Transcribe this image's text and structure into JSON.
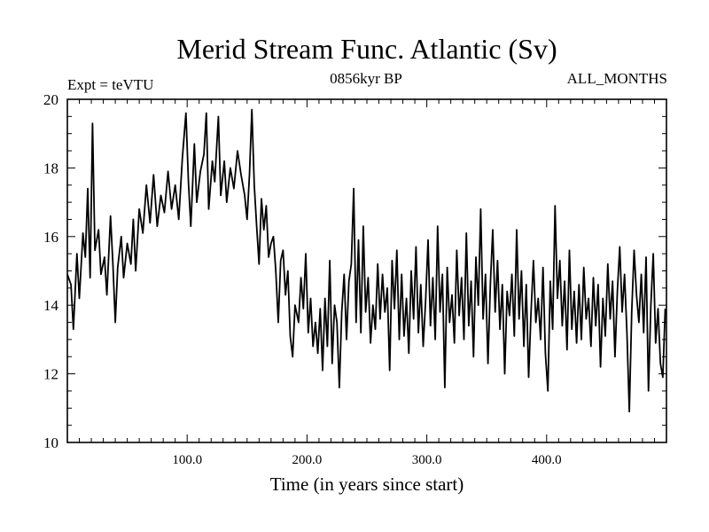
{
  "chart_data": {
    "type": "line",
    "title": "Merid Stream Func. Atlantic (Sv)",
    "subtitle_left": "Expt = teVTU",
    "subtitle_center": "0856kyr BP",
    "subtitle_right": "ALL_MONTHS",
    "xlabel": "Time (in years since start)",
    "ylabel": "",
    "xlim": [
      0,
      500
    ],
    "ylim": [
      10,
      20
    ],
    "xticks": [
      100,
      200,
      300,
      400
    ],
    "xtick_labels": [
      "100.0",
      "200.0",
      "300.0",
      "400.0"
    ],
    "yticks": [
      10,
      12,
      14,
      16,
      18,
      20
    ],
    "ytick_labels": [
      "10",
      "12",
      "14",
      "16",
      "18",
      "20"
    ],
    "grid": false,
    "series": [
      {
        "name": "Merid Stream Func. Atlantic",
        "color": "#000000",
        "keypoints": [
          [
            0,
            14.9
          ],
          [
            3,
            14.6
          ],
          [
            5,
            13.3
          ],
          [
            8,
            15.5
          ],
          [
            10,
            14.2
          ],
          [
            13,
            16.1
          ],
          [
            15,
            15.4
          ],
          [
            17,
            17.4
          ],
          [
            19,
            14.8
          ],
          [
            21,
            19.3
          ],
          [
            23,
            15.6
          ],
          [
            26,
            16.2
          ],
          [
            28,
            14.9
          ],
          [
            31,
            15.4
          ],
          [
            33,
            14.3
          ],
          [
            36,
            16.6
          ],
          [
            38,
            15.2
          ],
          [
            40,
            13.5
          ],
          [
            42,
            15.1
          ],
          [
            45,
            16.0
          ],
          [
            47,
            14.8
          ],
          [
            50,
            15.8
          ],
          [
            53,
            15.2
          ],
          [
            55,
            16.5
          ],
          [
            57,
            15.0
          ],
          [
            60,
            16.8
          ],
          [
            63,
            16.1
          ],
          [
            66,
            17.5
          ],
          [
            69,
            16.4
          ],
          [
            72,
            17.8
          ],
          [
            75,
            16.3
          ],
          [
            78,
            17.2
          ],
          [
            81,
            16.7
          ],
          [
            84,
            17.9
          ],
          [
            87,
            16.8
          ],
          [
            90,
            17.5
          ],
          [
            93,
            16.5
          ],
          [
            96,
            18.3
          ],
          [
            99,
            19.6
          ],
          [
            101,
            17.6
          ],
          [
            103,
            16.3
          ],
          [
            106,
            18.7
          ],
          [
            108,
            17.0
          ],
          [
            111,
            17.9
          ],
          [
            114,
            18.4
          ],
          [
            116,
            19.6
          ],
          [
            118,
            16.8
          ],
          [
            121,
            18.2
          ],
          [
            123,
            17.6
          ],
          [
            126,
            19.5
          ],
          [
            128,
            17.2
          ],
          [
            131,
            18.2
          ],
          [
            133,
            17.0
          ],
          [
            136,
            18.0
          ],
          [
            139,
            17.4
          ],
          [
            142,
            18.5
          ],
          [
            145,
            17.8
          ],
          [
            148,
            17.2
          ],
          [
            150,
            16.5
          ],
          [
            152,
            17.8
          ],
          [
            154,
            19.7
          ],
          [
            156,
            17.5
          ],
          [
            158,
            16.3
          ],
          [
            160,
            15.2
          ],
          [
            162,
            17.1
          ],
          [
            164,
            16.2
          ],
          [
            166,
            16.9
          ],
          [
            168,
            15.4
          ],
          [
            170,
            15.8
          ],
          [
            172,
            16.0
          ],
          [
            174,
            15.0
          ],
          [
            176,
            13.5
          ],
          [
            178,
            15.3
          ],
          [
            180,
            15.6
          ],
          [
            182,
            14.3
          ],
          [
            184,
            15.0
          ],
          [
            186,
            13.1
          ],
          [
            188,
            12.5
          ],
          [
            190,
            14.0
          ],
          [
            193,
            13.5
          ],
          [
            195,
            14.8
          ],
          [
            197,
            13.9
          ],
          [
            199,
            15.5
          ],
          [
            201,
            13.2
          ],
          [
            203,
            14.2
          ],
          [
            205,
            12.8
          ],
          [
            207,
            13.5
          ],
          [
            209,
            12.6
          ],
          [
            211,
            13.9
          ],
          [
            213,
            12.1
          ],
          [
            215,
            14.2
          ],
          [
            217,
            12.8
          ],
          [
            219,
            15.3
          ],
          [
            221,
            12.3
          ],
          [
            223,
            14.0
          ],
          [
            225,
            13.5
          ],
          [
            227,
            11.6
          ],
          [
            229,
            13.8
          ],
          [
            231,
            14.9
          ],
          [
            233,
            13.0
          ],
          [
            235,
            14.7
          ],
          [
            237,
            15.2
          ],
          [
            239,
            17.4
          ],
          [
            241,
            13.5
          ],
          [
            243,
            15.9
          ],
          [
            245,
            13.2
          ],
          [
            247,
            16.3
          ],
          [
            249,
            13.8
          ],
          [
            251,
            14.8
          ],
          [
            253,
            12.9
          ],
          [
            255,
            14.0
          ],
          [
            257,
            13.3
          ],
          [
            259,
            15.2
          ],
          [
            261,
            13.6
          ],
          [
            263,
            14.9
          ],
          [
            265,
            13.8
          ],
          [
            267,
            14.5
          ],
          [
            269,
            12.1
          ],
          [
            271,
            15.3
          ],
          [
            273,
            13.9
          ],
          [
            275,
            15.6
          ],
          [
            277,
            13.0
          ],
          [
            279,
            14.9
          ],
          [
            281,
            13.1
          ],
          [
            283,
            14.2
          ],
          [
            285,
            12.6
          ],
          [
            287,
            15.0
          ],
          [
            289,
            13.6
          ],
          [
            291,
            15.7
          ],
          [
            293,
            13.2
          ],
          [
            295,
            14.6
          ],
          [
            297,
            12.8
          ],
          [
            299,
            14.1
          ],
          [
            301,
            15.9
          ],
          [
            303,
            13.4
          ],
          [
            305,
            14.8
          ],
          [
            307,
            13.0
          ],
          [
            309,
            16.3
          ],
          [
            311,
            13.8
          ],
          [
            313,
            14.9
          ],
          [
            315,
            11.6
          ],
          [
            317,
            15.1
          ],
          [
            319,
            13.5
          ],
          [
            321,
            14.3
          ],
          [
            323,
            12.9
          ],
          [
            325,
            15.6
          ],
          [
            327,
            13.7
          ],
          [
            329,
            14.8
          ],
          [
            331,
            13.0
          ],
          [
            333,
            16.1
          ],
          [
            335,
            13.4
          ],
          [
            337,
            14.7
          ],
          [
            339,
            12.5
          ],
          [
            341,
            15.4
          ],
          [
            343,
            14.0
          ],
          [
            345,
            16.8
          ],
          [
            347,
            13.6
          ],
          [
            349,
            14.9
          ],
          [
            351,
            12.3
          ],
          [
            353,
            14.6
          ],
          [
            355,
            16.2
          ],
          [
            357,
            13.8
          ],
          [
            359,
            15.3
          ],
          [
            361,
            13.3
          ],
          [
            363,
            14.6
          ],
          [
            365,
            12.0
          ],
          [
            367,
            14.4
          ],
          [
            369,
            13.7
          ],
          [
            371,
            14.9
          ],
          [
            373,
            13.1
          ],
          [
            375,
            16.2
          ],
          [
            377,
            13.6
          ],
          [
            379,
            15.0
          ],
          [
            381,
            12.8
          ],
          [
            383,
            14.6
          ],
          [
            385,
            11.9
          ],
          [
            387,
            13.8
          ],
          [
            389,
            15.3
          ],
          [
            391,
            13.5
          ],
          [
            393,
            14.2
          ],
          [
            395,
            13.0
          ],
          [
            397,
            15.1
          ],
          [
            399,
            12.6
          ],
          [
            401,
            11.5
          ],
          [
            403,
            14.7
          ],
          [
            405,
            13.3
          ],
          [
            407,
            16.9
          ],
          [
            409,
            14.2
          ],
          [
            411,
            15.3
          ],
          [
            413,
            13.4
          ],
          [
            415,
            14.7
          ],
          [
            417,
            12.7
          ],
          [
            419,
            15.6
          ],
          [
            421,
            13.3
          ],
          [
            423,
            14.4
          ],
          [
            425,
            12.9
          ],
          [
            427,
            14.6
          ],
          [
            429,
            13.0
          ],
          [
            431,
            15.1
          ],
          [
            433,
            13.6
          ],
          [
            435,
            14.2
          ],
          [
            437,
            12.8
          ],
          [
            439,
            14.8
          ],
          [
            441,
            13.4
          ],
          [
            443,
            14.6
          ],
          [
            445,
            12.2
          ],
          [
            447,
            14.2
          ],
          [
            449,
            13.1
          ],
          [
            451,
            15.2
          ],
          [
            453,
            13.6
          ],
          [
            455,
            14.7
          ],
          [
            457,
            12.5
          ],
          [
            459,
            14.4
          ],
          [
            461,
            15.7
          ],
          [
            463,
            13.8
          ],
          [
            465,
            14.9
          ],
          [
            467,
            13.2
          ],
          [
            469,
            10.9
          ],
          [
            471,
            13.8
          ],
          [
            473,
            15.6
          ],
          [
            475,
            14.3
          ],
          [
            477,
            13.5
          ],
          [
            479,
            14.9
          ],
          [
            481,
            13.2
          ],
          [
            483,
            15.4
          ],
          [
            485,
            11.5
          ],
          [
            487,
            14.0
          ],
          [
            489,
            15.5
          ],
          [
            491,
            12.9
          ],
          [
            493,
            13.9
          ],
          [
            495,
            12.3
          ],
          [
            497,
            11.9
          ],
          [
            499,
            13.9
          ]
        ]
      }
    ]
  }
}
